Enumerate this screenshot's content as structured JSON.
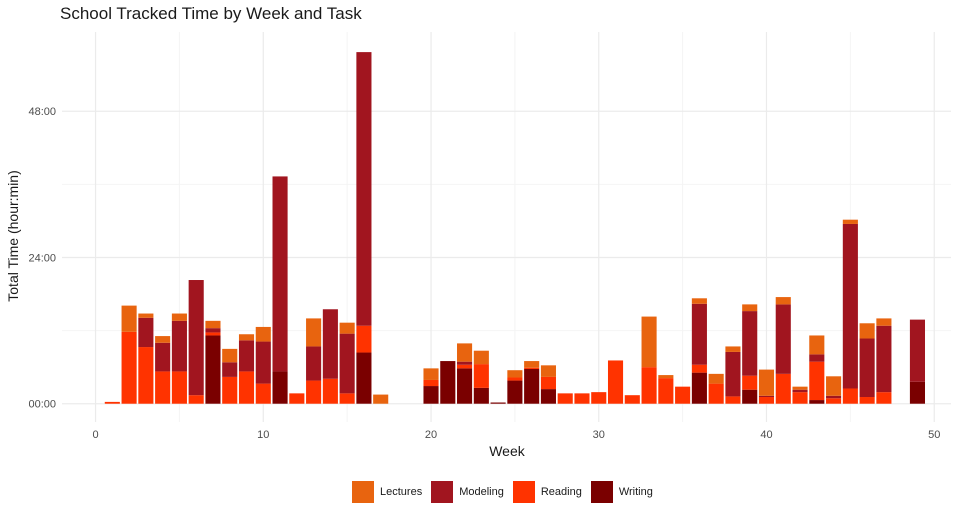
{
  "colors": {
    "Lectures": "#e8640f",
    "Modeling": "#a1151f",
    "Reading": "#ff3300",
    "Writing": "#7a0000",
    "grid_major": "#ebebeb",
    "grid_minor": "#f4f4f4"
  },
  "chart_data": {
    "type": "bar",
    "stacked": true,
    "title": "School Tracked Time by Week and Task",
    "xlabel": "Week",
    "ylabel": "Total Time (hour:min)",
    "xlim": [
      -2,
      51
    ],
    "ylim": [
      -3,
      61
    ],
    "x_ticks": [
      0,
      10,
      20,
      30,
      40,
      50
    ],
    "x_tick_labels": [
      "0",
      "10",
      "20",
      "30",
      "40",
      "50"
    ],
    "y_ticks": [
      0,
      24,
      48
    ],
    "y_tick_labels": [
      "00:00",
      "24:00",
      "48:00"
    ],
    "legend_position": "bottom",
    "stack_order": [
      "Writing",
      "Reading",
      "Modeling",
      "Lectures"
    ],
    "series": [
      {
        "name": "Lectures",
        "values": {
          "2": 4.3,
          "3": 0.7,
          "4": 1.1,
          "5": 1.2,
          "7": 1.2,
          "8": 2.2,
          "9": 1.0,
          "10": 2.4,
          "13": 4.6,
          "15": 1.8,
          "17": 1.5,
          "20": 1.9,
          "22": 3.0,
          "23": 2.2,
          "25": 1.2,
          "26": 1.1,
          "27": 1.9,
          "33": 8.3,
          "34": 0.5,
          "36": 0.9,
          "37": 1.6,
          "38": 0.9,
          "39": 1.1,
          "40": 4.3,
          "41": 1.2,
          "42": 0.5,
          "43": 3.1,
          "44": 3.2,
          "45": 0.7,
          "46": 2.5,
          "47": 1.2
        }
      },
      {
        "name": "Modeling",
        "values": {
          "3": 4.8,
          "4": 4.7,
          "5": 8.3,
          "6": 18.9,
          "7": 0.7,
          "8": 2.4,
          "9": 5.1,
          "10": 6.9,
          "11": 32.0,
          "13": 5.6,
          "14": 11.4,
          "15": 9.8,
          "16": 44.9,
          "22": 0.5,
          "36": 10.0,
          "38": 7.3,
          "39": 10.6,
          "40": 0.2,
          "41": 11.4,
          "42": 0.4,
          "43": 1.2,
          "44": 0.4,
          "45": 27.0,
          "46": 9.6,
          "47": 10.9,
          "49": 10.2
        }
      },
      {
        "name": "Reading",
        "values": {
          "1": 0.3,
          "2": 11.8,
          "3": 9.3,
          "4": 5.3,
          "5": 5.3,
          "6": 1.4,
          "7": 0.5,
          "8": 4.4,
          "9": 5.3,
          "10": 3.3,
          "12": 1.7,
          "13": 3.8,
          "14": 4.1,
          "15": 1.7,
          "16": 4.4,
          "20": 1.0,
          "22": 0.6,
          "23": 3.9,
          "25": 0.5,
          "26": 0.2,
          "27": 2.0,
          "28": 1.7,
          "29": 1.7,
          "30": 1.9,
          "31": 7.1,
          "32": 1.4,
          "33": 6.0,
          "34": 4.2,
          "35": 2.8,
          "36": 1.3,
          "37": 3.3,
          "38": 1.2,
          "39": 2.3,
          "40": 1.1,
          "41": 4.9,
          "42": 1.9,
          "43": 6.3,
          "44": 0.9,
          "45": 2.5,
          "46": 1.1,
          "47": 1.9
        }
      },
      {
        "name": "Writing",
        "values": {
          "7": 11.2,
          "11": 5.3,
          "16": 8.4,
          "20": 2.9,
          "21": 7.0,
          "22": 5.8,
          "23": 2.6,
          "24": 0.2,
          "25": 3.8,
          "26": 5.7,
          "27": 2.4,
          "36": 5.1,
          "39": 2.3,
          "43": 0.6,
          "49": 3.6
        }
      }
    ]
  },
  "legend": {
    "items": [
      {
        "key": "Lectures",
        "label": "Lectures"
      },
      {
        "key": "Modeling",
        "label": "Modeling"
      },
      {
        "key": "Reading",
        "label": "Reading"
      },
      {
        "key": "Writing",
        "label": "Writing"
      }
    ]
  }
}
